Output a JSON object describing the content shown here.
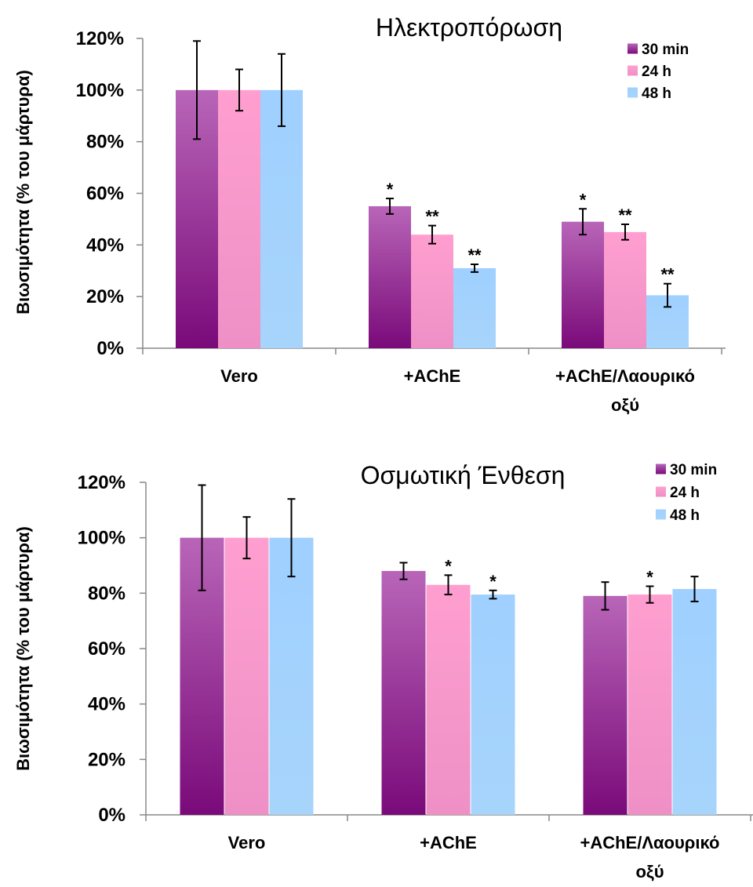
{
  "chart_data": [
    {
      "type": "bar",
      "title": "Ηλεκτροπόρωση",
      "ylabel": "Βιωσιμότητα (% του μάρτυρα)",
      "xlabel": "",
      "ylim": [
        0,
        120
      ],
      "yticks": [
        "0%",
        "20%",
        "40%",
        "60%",
        "80%",
        "100%",
        "120%"
      ],
      "categories": [
        [
          "Vero"
        ],
        [
          "+AChE"
        ],
        [
          "+AChE/Λαουρικό",
          "οξύ"
        ]
      ],
      "legend_position": "top-right",
      "series": [
        {
          "name": "30 min",
          "color_top": "#b865b8",
          "color_bottom": "#7a0a7a",
          "values": [
            100,
            55,
            49
          ],
          "errors": [
            19,
            3,
            5
          ],
          "significance": [
            "",
            "*",
            "*"
          ]
        },
        {
          "name": "24 h",
          "color_top": "#ff9fd0",
          "color_bottom": "#ee90c6",
          "values": [
            100,
            44,
            45
          ],
          "errors": [
            8,
            3.5,
            3
          ],
          "significance": [
            "",
            "**",
            "**"
          ]
        },
        {
          "name": "48 h",
          "color_top": "#9fd0ff",
          "color_bottom": "#a7d4fb",
          "values": [
            100,
            31,
            20.5
          ],
          "errors": [
            14,
            1.5,
            4.5
          ],
          "significance": [
            "",
            "**",
            "**"
          ]
        }
      ]
    },
    {
      "type": "bar",
      "title": "Οσμωτική Ένθεση",
      "ylabel": "Βιωσιμότητα (% του μάρτυρα)",
      "xlabel": "",
      "ylim": [
        0,
        120
      ],
      "yticks": [
        "0%",
        "20%",
        "40%",
        "60%",
        "80%",
        "100%",
        "120%"
      ],
      "categories": [
        [
          "Vero"
        ],
        [
          "+AChE"
        ],
        [
          "+AChE/Λαουρικό",
          "οξύ"
        ]
      ],
      "legend_position": "top-right",
      "series": [
        {
          "name": "30 min",
          "color_top": "#b865b8",
          "color_bottom": "#7a0a7a",
          "values": [
            100,
            88,
            79
          ],
          "errors": [
            19,
            3,
            5
          ],
          "significance": [
            "",
            "",
            ""
          ]
        },
        {
          "name": "24 h",
          "color_top": "#ff9fd0",
          "color_bottom": "#ee90c6",
          "values": [
            100,
            83,
            79.5
          ],
          "errors": [
            7.5,
            3.5,
            3
          ],
          "significance": [
            "",
            "*",
            "*"
          ]
        },
        {
          "name": "48 h",
          "color_top": "#9fd0ff",
          "color_bottom": "#a7d4fb",
          "values": [
            100,
            79.5,
            81.5
          ],
          "errors": [
            14,
            1.5,
            4.5
          ],
          "significance": [
            "",
            "*",
            ""
          ]
        }
      ]
    }
  ]
}
